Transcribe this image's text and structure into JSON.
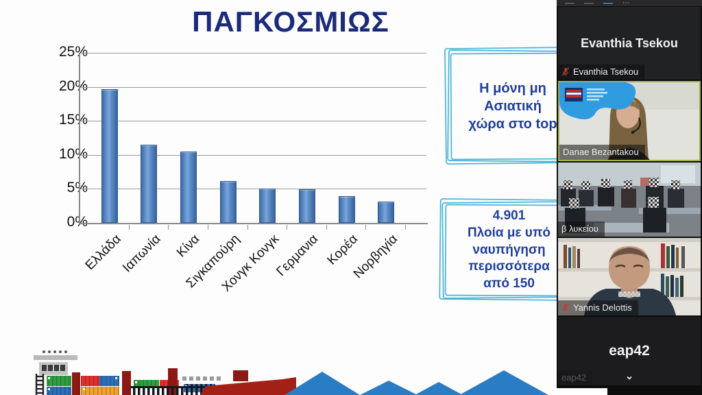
{
  "slide": {
    "title": "ΠΑΓΚΟΣΜΙΩΣ",
    "callout_top": {
      "lines": [
        "Η μόνη μη",
        "Ασιατική",
        "χώρα στο top"
      ]
    },
    "callout_bottom": {
      "lines": [
        "4.901",
        "Πλοία με υπό",
        "ναυπήγηση",
        "περισσότερα",
        "από 150"
      ]
    }
  },
  "chart_data": {
    "type": "bar",
    "title": "ΠΑΓΚΟΣΜΙΩΣ",
    "categories": [
      "Ελλάδα",
      "Ιαπωνία",
      "Κίνα",
      "Σιγκαπούρη",
      "Χονγκ Κονγκ",
      "Γερμανια",
      "Κορέα",
      "Νορβηγία"
    ],
    "values": [
      19.7,
      11.5,
      10.5,
      6.2,
      5.0,
      4.9,
      3.9,
      3.1
    ],
    "unit": "%",
    "ylim": [
      0,
      25
    ],
    "yticks": [
      "25%",
      "20%",
      "15%",
      "10%",
      "5%",
      "0%"
    ],
    "grid": true,
    "legend": false,
    "xlabel": "",
    "ylabel": "",
    "bar_color": "#4f81bd"
  },
  "panel": {
    "toolbar": {
      "ellipsis_icon": "⋯"
    },
    "tiles": [
      {
        "kind": "name-card",
        "display_text": "Evanthia Tsekou",
        "label": "Evanthia Tsekou",
        "muted": true
      },
      {
        "kind": "video",
        "label": "Danae Bezantakou",
        "muted": false,
        "active_speaker": true
      },
      {
        "kind": "video",
        "label": "β λυκείου",
        "muted": false
      },
      {
        "kind": "video",
        "label": "Yannis Delottis",
        "muted": true
      },
      {
        "kind": "name-card",
        "display_text": "eap42",
        "label": "eap42",
        "muted": false
      }
    ],
    "scroll_more_icon": "chevron-down"
  },
  "colors": {
    "title_navy": "#1c2a7a",
    "callout_border": "#4fb6d9",
    "callout_text": "#1f3f9e",
    "bar_fill": "#4f81bd",
    "bar_border": "#2f5a8c",
    "wave_blue": "#2a7cc4",
    "active_speaker_green": "#a3b13f",
    "mic_muted_red": "#c43b2f"
  }
}
